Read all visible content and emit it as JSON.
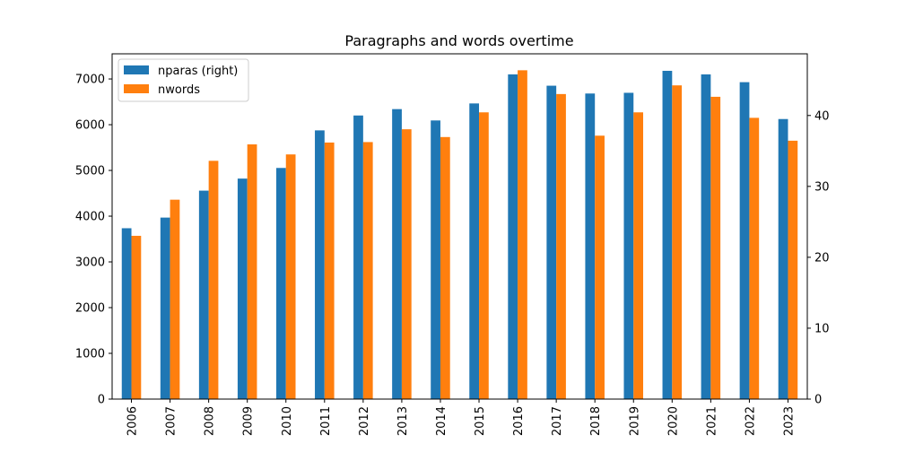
{
  "chart_data": {
    "type": "bar",
    "title": "Paragraphs and words overtime",
    "xlabel": "",
    "ylabel_left": "",
    "ylabel_right": "",
    "categories": [
      "2006",
      "2007",
      "2008",
      "2009",
      "2010",
      "2011",
      "2012",
      "2013",
      "2014",
      "2015",
      "2016",
      "2017",
      "2018",
      "2019",
      "2020",
      "2021",
      "2022",
      "2023"
    ],
    "series": [
      {
        "name": "nparas (right)",
        "axis": "right",
        "color": "#1f77b4",
        "values": [
          24.1,
          25.6,
          29.4,
          31.1,
          32.6,
          37.9,
          40.0,
          40.9,
          39.3,
          41.7,
          45.8,
          44.2,
          43.1,
          43.2,
          46.3,
          45.8,
          44.7,
          39.5
        ]
      },
      {
        "name": "nwords",
        "axis": "left",
        "color": "#ff7f0e",
        "values": [
          3570,
          4360,
          5210,
          5570,
          5350,
          5610,
          5620,
          5900,
          5730,
          6270,
          7190,
          6670,
          5760,
          6270,
          6860,
          6610,
          6150,
          5650
        ]
      }
    ],
    "ylim_left": [
      0,
      7550
    ],
    "ylim_right": [
      0,
      48.7
    ],
    "yticks_left": [
      0,
      1000,
      2000,
      3000,
      4000,
      5000,
      6000,
      7000
    ],
    "yticks_right": [
      0,
      10,
      20,
      30,
      40
    ],
    "grid": false,
    "legend_placement": "upper-left"
  }
}
